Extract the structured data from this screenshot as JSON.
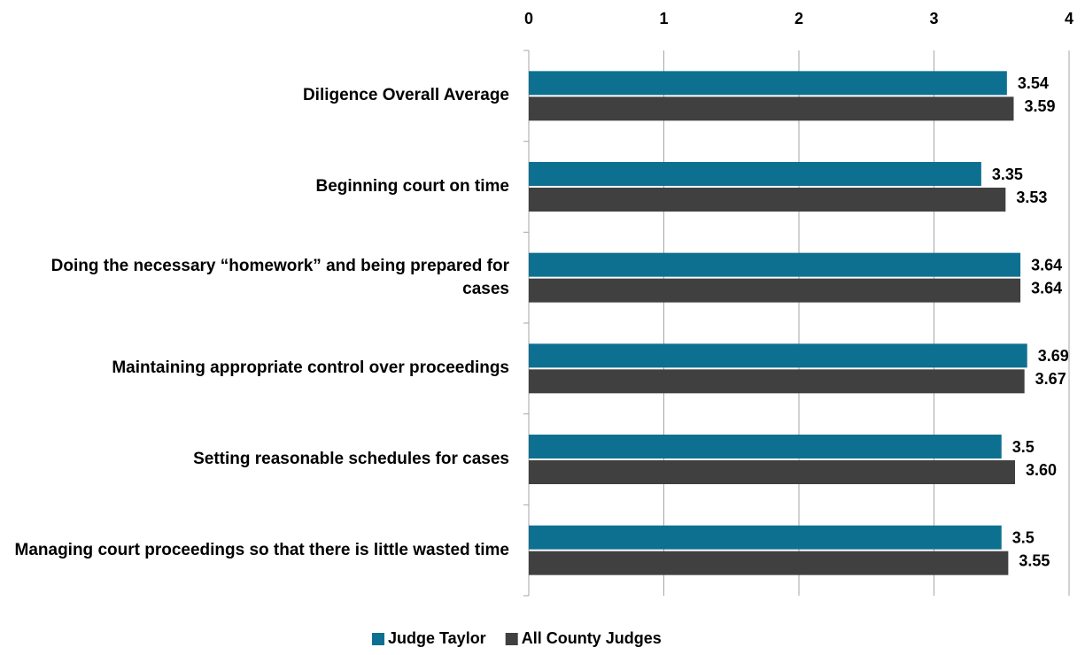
{
  "chart_data": {
    "type": "bar",
    "orientation": "horizontal",
    "categories": [
      "Diligence Overall Average",
      "Beginning court on time",
      "Doing the necessary “homework” and being prepared for cases",
      "Maintaining appropriate control over proceedings",
      "Setting reasonable schedules for cases",
      "Managing court proceedings so that there is little wasted time"
    ],
    "series": [
      {
        "name": "Judge Taylor",
        "color": "#0e7090",
        "values": [
          3.54,
          3.35,
          3.64,
          3.69,
          3.5,
          3.5
        ]
      },
      {
        "name": "All County Judges",
        "color": "#404040",
        "values": [
          3.59,
          3.53,
          3.64,
          3.67,
          3.6,
          3.55
        ],
        "value_labels": [
          "3.59",
          "3.53",
          "3.64",
          "3.67",
          "3.60",
          "3.55"
        ]
      }
    ],
    "xlim": [
      0,
      4
    ],
    "xticks": [
      0,
      1,
      2,
      3,
      4
    ],
    "grid": true,
    "legend": "bottom"
  }
}
